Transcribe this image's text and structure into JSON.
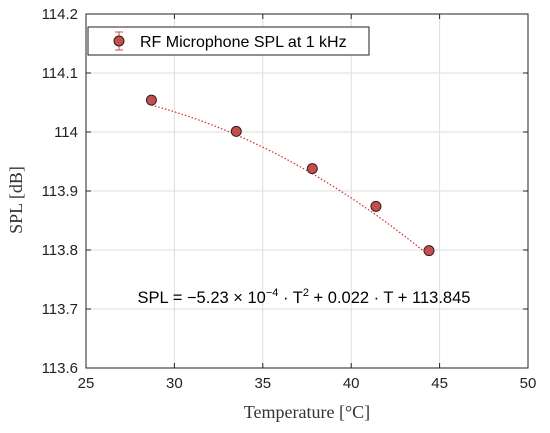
{
  "chart_data": {
    "type": "scatter",
    "title": "",
    "xlabel": "Temperature [°C]",
    "ylabel": "SPL [dB]",
    "xlim": [
      25,
      50
    ],
    "ylim": [
      113.6,
      114.2
    ],
    "xticks": [
      "25",
      "30",
      "35",
      "40",
      "45",
      "50"
    ],
    "yticks": [
      "113.6",
      "113.7",
      "113.8",
      "113.9",
      "114",
      "114.1",
      "114.2"
    ],
    "grid": true,
    "legend_position": "top-left",
    "series": [
      {
        "name": "RF Microphone SPL at 1 kHz",
        "marker_color": "#c0504d",
        "x": [
          28.7,
          33.5,
          37.8,
          41.4,
          44.4
        ],
        "y": [
          114.054,
          114.001,
          113.938,
          113.874,
          113.799
        ]
      }
    ],
    "fit": {
      "equation_parts": [
        "SPL = −5.23 × 10",
        "−4",
        " · T",
        "2",
        " + 0.022 · T + 113.845"
      ],
      "coefficients": {
        "a": -0.000523,
        "b": 0.022,
        "c": 113.845
      },
      "line_color": "#d62728",
      "line_style": "dotted"
    }
  }
}
